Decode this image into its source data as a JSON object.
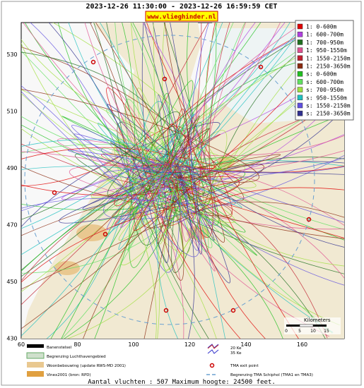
{
  "header": {
    "title": "2023-12-26 11:30:00 - 2023-12-26 16:59:59 CET",
    "link": "www.vlieghinder.nl"
  },
  "map": {
    "x_ticks": [
      60,
      80,
      100,
      120,
      140,
      160
    ],
    "y_ticks": [
      530,
      510,
      490,
      470,
      450,
      430
    ],
    "scale": {
      "label": "Kilometers",
      "ticks": [
        0,
        5,
        10,
        15
      ]
    }
  },
  "legend": [
    {
      "label": "1: 0-600m",
      "color": "#e00000"
    },
    {
      "label": "1: 600-700m",
      "color": "#b040e0"
    },
    {
      "label": "1: 700-950m",
      "color": "#207020"
    },
    {
      "label": "1: 950-1550m",
      "color": "#e05090"
    },
    {
      "label": "1: 1550-2150m",
      "color": "#c02030"
    },
    {
      "label": "1: 2150-3650m",
      "color": "#8b2a10"
    },
    {
      "label": "s: 0-600m",
      "color": "#20c020"
    },
    {
      "label": "s: 600-700m",
      "color": "#60e060"
    },
    {
      "label": "s: 700-950m",
      "color": "#a0e040"
    },
    {
      "label": "s: 950-1550m",
      "color": "#20c0c0"
    },
    {
      "label": "s: 1550-2150m",
      "color": "#6050e0"
    },
    {
      "label": "s: 2150-3650m",
      "color": "#303090"
    }
  ],
  "key": [
    "Banenstelsel",
    "Begrenzing Luchthavengebied",
    "Woonbebouwing (update RWS-MD 2001)",
    "Vinex2001 (bron: RPD)"
  ],
  "noise": [
    "20 Ke",
    "35 Ke"
  ],
  "tma": [
    "TMA exit point",
    "Begrenzing TMA Schiphol  (TMA1 en TMA3)"
  ],
  "footer": "Aantal vluchten : 507 Maximum hoogte: 24500 feet."
}
